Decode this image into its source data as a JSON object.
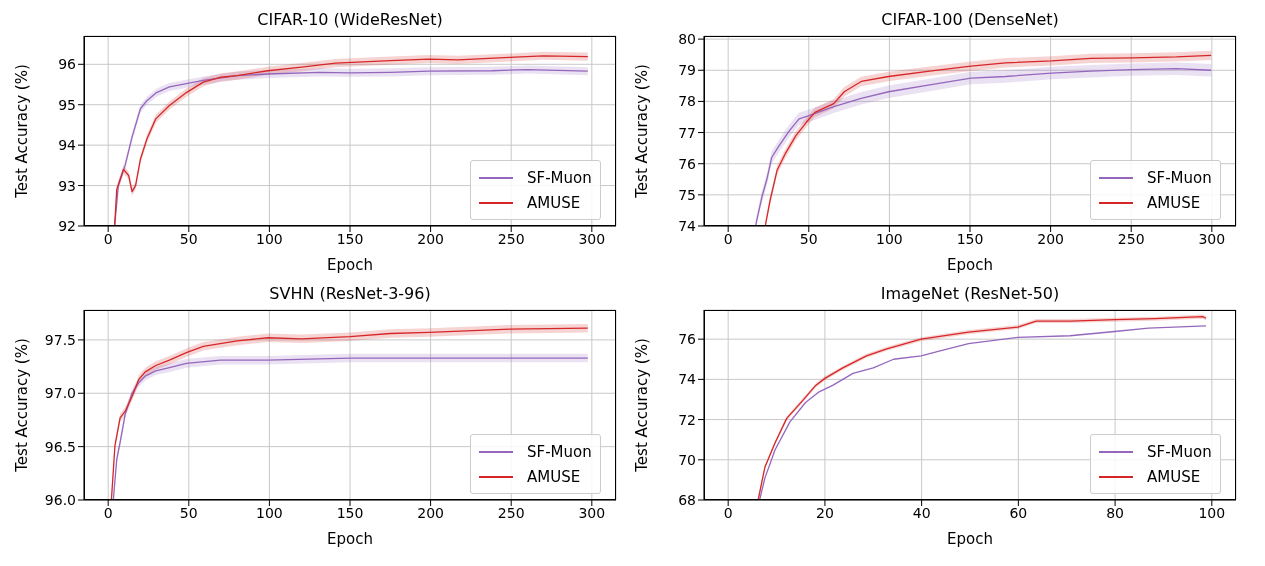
{
  "chart_data": [
    {
      "type": "line",
      "title": "CIFAR-10 (WideResNet)",
      "xlabel": "Epoch",
      "ylabel": "Test Accuracy (%)",
      "xlim": [
        -15,
        315
      ],
      "xticks": [
        0,
        50,
        100,
        150,
        200,
        250,
        300
      ],
      "ylim": [
        92,
        96.7
      ],
      "yticks": [
        92,
        93,
        94,
        95,
        96
      ],
      "grid": true,
      "legend": "bottom right",
      "series": [
        {
          "name": "SF-Muon",
          "color": "#9467bd",
          "x": [
            4,
            6.3,
            10.5,
            14.8,
            20,
            24,
            30,
            38,
            48.5,
            59,
            80,
            99,
            131,
            150,
            175,
            199,
            238,
            260,
            297.5
          ],
          "values": [
            92,
            93.0,
            93.5,
            94.2,
            94.9,
            95.1,
            95.3,
            95.44,
            95.52,
            95.6,
            95.72,
            95.76,
            95.8,
            95.79,
            95.8,
            95.83,
            95.84,
            95.87,
            95.83
          ],
          "lower": [
            92,
            92.9,
            93.4,
            94.1,
            94.8,
            95.0,
            95.2,
            95.34,
            95.42,
            95.5,
            95.62,
            95.66,
            95.7,
            95.69,
            95.7,
            95.73,
            95.74,
            95.77,
            95.73
          ],
          "upper": [
            92.1,
            93.1,
            93.6,
            94.3,
            95.0,
            95.2,
            95.4,
            95.54,
            95.62,
            95.7,
            95.82,
            95.86,
            95.9,
            95.89,
            95.9,
            95.93,
            95.94,
            95.97,
            95.93
          ]
        },
        {
          "name": "AMUSE",
          "color": "#d62728",
          "x": [
            4,
            5.3,
            9.5,
            12.7,
            14.8,
            17,
            20,
            24,
            29.5,
            38,
            48.5,
            59,
            70,
            80,
            99,
            120,
            141,
            175,
            199,
            217,
            249,
            270,
            297.5
          ],
          "values": [
            92,
            92.9,
            93.4,
            93.25,
            92.85,
            93.0,
            93.65,
            94.15,
            94.65,
            94.98,
            95.3,
            95.56,
            95.68,
            95.72,
            95.84,
            95.93,
            96.03,
            96.09,
            96.13,
            96.11,
            96.17,
            96.21,
            96.19
          ],
          "lower": [
            92,
            92.8,
            93.3,
            93.15,
            92.75,
            92.9,
            93.55,
            94.05,
            94.55,
            94.88,
            95.2,
            95.46,
            95.58,
            95.62,
            95.74,
            95.83,
            95.93,
            95.99,
            96.03,
            96.01,
            96.07,
            96.11,
            96.09
          ],
          "upper": [
            92.1,
            93.0,
            93.5,
            93.35,
            92.95,
            93.1,
            93.75,
            94.25,
            94.75,
            95.08,
            95.4,
            95.66,
            95.78,
            95.82,
            95.94,
            96.03,
            96.13,
            96.19,
            96.23,
            96.21,
            96.27,
            96.31,
            96.29
          ]
        }
      ]
    },
    {
      "type": "line",
      "title": "CIFAR-100 (DenseNet)",
      "xlabel": "Epoch",
      "ylabel": "Test Accuracy (%)",
      "xlim": [
        -15,
        315
      ],
      "xticks": [
        0,
        50,
        100,
        150,
        200,
        250,
        300
      ],
      "ylim": [
        74,
        80.1
      ],
      "yticks": [
        74,
        75,
        76,
        77,
        78,
        79,
        80
      ],
      "grid": true,
      "legend": "bottom right",
      "series": [
        {
          "name": "SF-Muon",
          "color": "#9467bd",
          "x": [
            17,
            20.9,
            24,
            27,
            31.5,
            38,
            44,
            50.6,
            65.5,
            82.5,
            99.5,
            125,
            150.6,
            172,
            200.6,
            225,
            250.6,
            278,
            299.6
          ],
          "values": [
            74,
            74.93,
            75.5,
            76.2,
            76.57,
            77.06,
            77.44,
            77.55,
            77.83,
            78.1,
            78.31,
            78.53,
            78.75,
            78.8,
            78.91,
            78.97,
            79.02,
            79.05,
            79.0
          ],
          "lower": [
            74,
            74.73,
            75.3,
            76.0,
            76.37,
            76.86,
            77.24,
            77.35,
            77.63,
            77.9,
            78.11,
            78.33,
            78.55,
            78.6,
            78.71,
            78.77,
            78.82,
            78.85,
            78.8
          ],
          "upper": [
            74.2,
            75.13,
            75.7,
            76.4,
            76.77,
            77.26,
            77.64,
            77.75,
            78.03,
            78.3,
            78.51,
            78.73,
            78.95,
            79.0,
            79.11,
            79.17,
            79.22,
            79.25,
            79.2
          ]
        },
        {
          "name": "AMUSE",
          "color": "#d62728",
          "x": [
            23,
            26,
            30.4,
            35.7,
            42,
            48.5,
            53.8,
            65.5,
            72,
            82.5,
            99.5,
            125,
            150.6,
            172,
            200.6,
            225,
            250.6,
            278,
            299.6
          ],
          "values": [
            74,
            74.82,
            75.8,
            76.35,
            76.9,
            77.33,
            77.65,
            77.93,
            78.31,
            78.64,
            78.8,
            78.97,
            79.13,
            79.24,
            79.3,
            79.38,
            79.4,
            79.43,
            79.48
          ],
          "lower": [
            74,
            74.67,
            75.65,
            76.2,
            76.75,
            77.18,
            77.5,
            77.78,
            78.16,
            78.49,
            78.65,
            78.82,
            78.98,
            79.09,
            79.15,
            79.23,
            79.25,
            79.28,
            79.33
          ],
          "upper": [
            74.15,
            74.97,
            75.95,
            76.5,
            77.05,
            77.48,
            77.8,
            78.08,
            78.46,
            78.79,
            78.95,
            79.12,
            79.28,
            79.39,
            79.45,
            79.53,
            79.55,
            79.58,
            79.63
          ]
        }
      ]
    },
    {
      "type": "line",
      "title": "SVHN (ResNet-3-96)",
      "xlabel": "Epoch",
      "ylabel": "Test Accuracy (%)",
      "xlim": [
        -15,
        315
      ],
      "xticks": [
        0,
        50,
        100,
        150,
        200,
        250,
        300
      ],
      "ylim": [
        96,
        97.78
      ],
      "yticks": [
        {
          "value": 96,
          "label": "96.0"
        },
        {
          "value": 96.5,
          "label": "96.5"
        },
        {
          "value": 97,
          "label": "97.0"
        },
        {
          "value": 97.5,
          "label": "97.5"
        }
      ],
      "grid": true,
      "legend": "bottom right",
      "series": [
        {
          "name": "SF-Muon",
          "color": "#9467bd",
          "x": [
            3.2,
            5.3,
            7.4,
            10.5,
            14.8,
            19,
            23,
            29.5,
            38,
            48.5,
            69.6,
            99,
            150,
            199,
            249,
            297.5
          ],
          "values": [
            96.0,
            96.38,
            96.54,
            96.8,
            97.0,
            97.1,
            97.16,
            97.21,
            97.24,
            97.28,
            97.31,
            97.31,
            97.33,
            97.33,
            97.33,
            97.33
          ],
          "lower": [
            96.0,
            96.34,
            96.5,
            96.76,
            96.96,
            97.06,
            97.12,
            97.17,
            97.2,
            97.24,
            97.27,
            97.27,
            97.29,
            97.29,
            97.29,
            97.29
          ],
          "upper": [
            96.04,
            96.42,
            96.58,
            96.84,
            97.04,
            97.14,
            97.2,
            97.25,
            97.28,
            97.32,
            97.35,
            97.35,
            97.37,
            97.37,
            97.37,
            97.37
          ]
        },
        {
          "name": "AMUSE",
          "color": "#d62728",
          "x": [
            2,
            4.2,
            7.4,
            10.5,
            14.8,
            19,
            23,
            29.5,
            38,
            48.5,
            59,
            80,
            99,
            120,
            150,
            175,
            199,
            249,
            297.5
          ],
          "values": [
            96.0,
            96.51,
            96.77,
            96.83,
            96.97,
            97.13,
            97.2,
            97.26,
            97.31,
            97.38,
            97.44,
            97.49,
            97.52,
            97.51,
            97.53,
            97.56,
            97.57,
            97.6,
            97.61
          ],
          "lower": [
            96.0,
            96.47,
            96.73,
            96.79,
            96.93,
            97.09,
            97.16,
            97.22,
            97.27,
            97.34,
            97.4,
            97.45,
            97.48,
            97.47,
            97.49,
            97.52,
            97.53,
            97.56,
            97.57
          ],
          "upper": [
            96.04,
            96.55,
            96.81,
            96.87,
            97.01,
            97.17,
            97.24,
            97.3,
            97.35,
            97.42,
            97.48,
            97.53,
            97.56,
            97.55,
            97.57,
            97.6,
            97.61,
            97.64,
            97.65
          ]
        }
      ]
    },
    {
      "type": "line",
      "title": "ImageNet (ResNet-50)",
      "xlabel": "Epoch",
      "ylabel": "Test Accuracy (%)",
      "xlim": [
        -5,
        105
      ],
      "xticks": [
        0,
        20,
        40,
        60,
        80,
        100
      ],
      "ylim": [
        68,
        77.45
      ],
      "yticks": [
        68,
        70,
        72,
        74,
        76
      ],
      "grid": true,
      "legend": "bottom right",
      "series": [
        {
          "name": "SF-Muon",
          "color": "#9467bd",
          "x": [
            6.5,
            7.6,
            9.7,
            12.8,
            16,
            18.8,
            21.6,
            25.8,
            30,
            34.2,
            39.9,
            44,
            49.7,
            59.9,
            70.7,
            79.9,
            86.9,
            98.8
          ],
          "values": [
            68,
            69.1,
            70.5,
            71.9,
            72.85,
            73.38,
            73.7,
            74.3,
            74.57,
            75.0,
            75.17,
            75.43,
            75.78,
            76.09,
            76.17,
            76.38,
            76.55,
            76.66
          ]
        },
        {
          "name": "AMUSE",
          "color": "#d62728",
          "x": [
            6.2,
            7.6,
            9.7,
            12.1,
            15.3,
            18.1,
            20,
            23.7,
            28.6,
            32.8,
            39.9,
            49.7,
            59.9,
            63.7,
            70.7,
            79.9,
            88.3,
            98.1,
            98.8
          ],
          "values": [
            68,
            69.64,
            70.85,
            72.06,
            72.92,
            73.7,
            74.05,
            74.57,
            75.17,
            75.52,
            76.0,
            76.35,
            76.6,
            76.9,
            76.9,
            76.97,
            77.02,
            77.12,
            77.04
          ],
          "lower": [
            68,
            69.54,
            70.75,
            71.96,
            72.82,
            73.6,
            73.95,
            74.47,
            75.07,
            75.42,
            75.9,
            76.25,
            76.5,
            76.8,
            76.8,
            76.87,
            76.92,
            77.02,
            76.94
          ],
          "upper": [
            68.1,
            69.74,
            70.95,
            72.16,
            73.02,
            73.8,
            74.15,
            74.67,
            75.27,
            75.62,
            76.1,
            76.45,
            76.7,
            77.0,
            77.0,
            77.07,
            77.12,
            77.22,
            77.14
          ]
        }
      ]
    }
  ]
}
